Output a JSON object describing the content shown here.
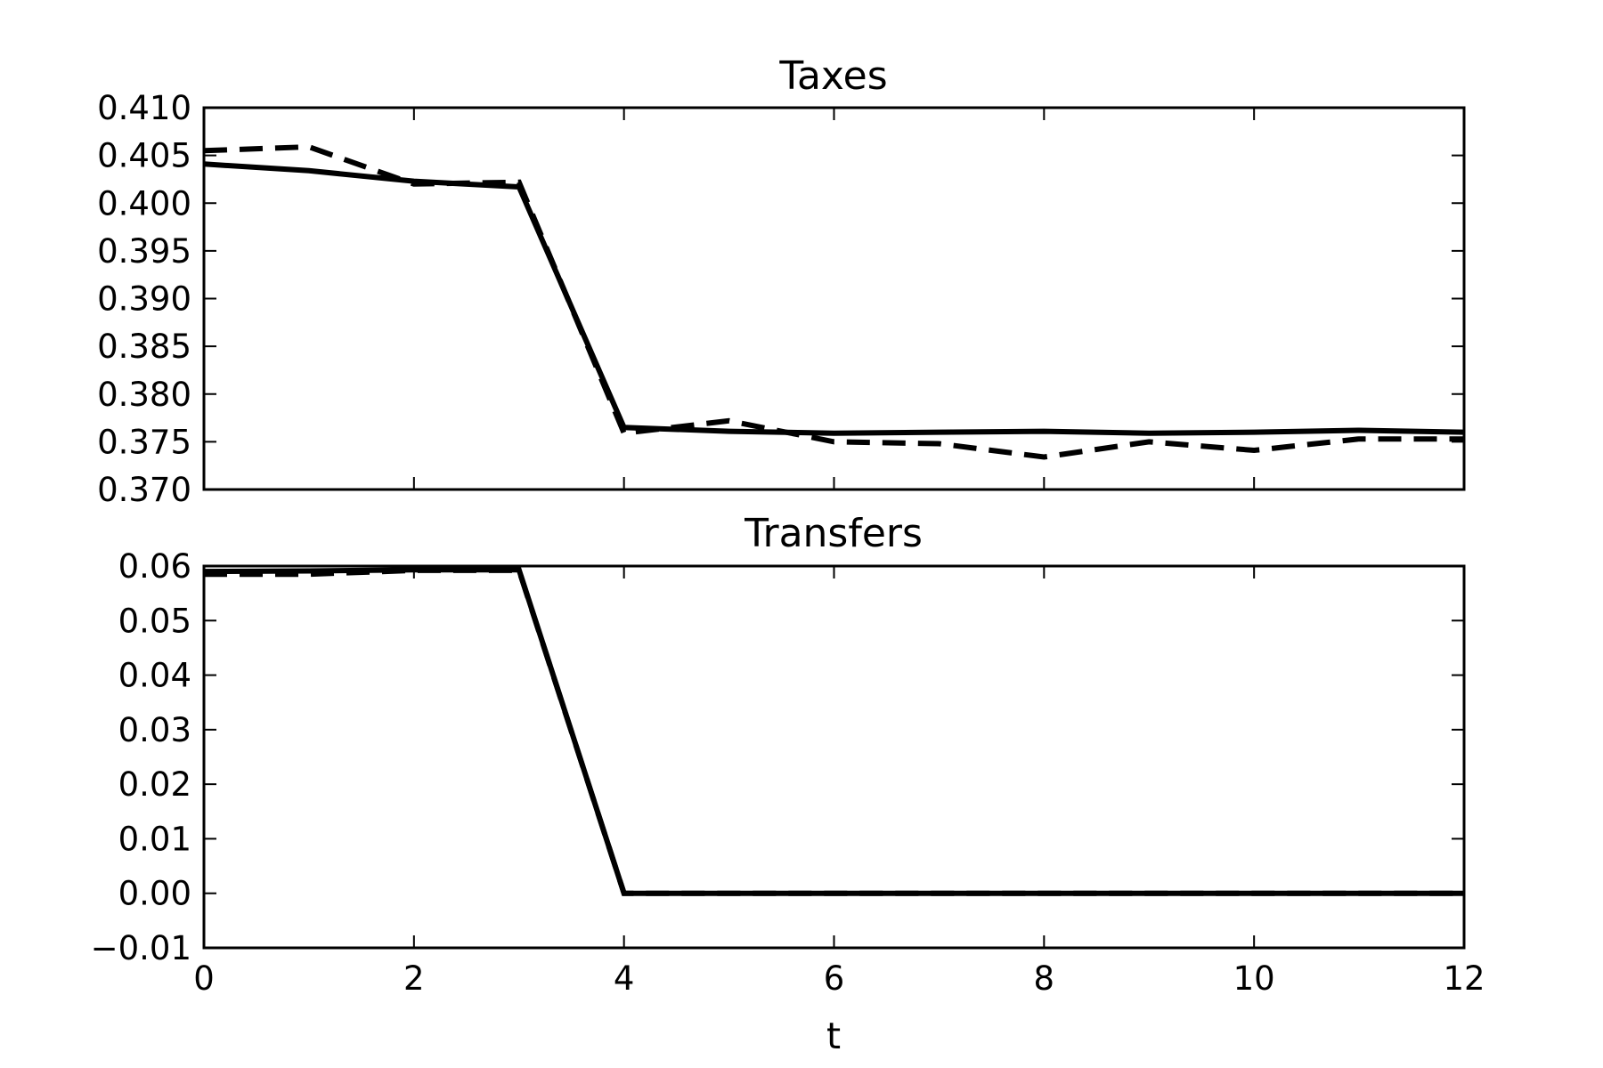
{
  "chart_data": [
    {
      "type": "line",
      "title": "Taxes",
      "xlabel": "",
      "ylabel": "",
      "xlim": [
        0,
        12
      ],
      "ylim": [
        0.37,
        0.41
      ],
      "x_ticks": [
        "0",
        "2",
        "4",
        "6",
        "8",
        "10",
        "12"
      ],
      "y_ticks": [
        "0.410",
        "0.405",
        "0.400",
        "0.395",
        "0.390",
        "0.385",
        "0.380",
        "0.375",
        "0.370"
      ],
      "grid": false,
      "x": [
        0,
        1,
        2,
        3,
        4,
        5,
        6,
        7,
        8,
        9,
        10,
        11,
        12
      ],
      "series": [
        {
          "style": "solid",
          "color": "#000000",
          "values": [
            0.4041,
            0.4034,
            0.4023,
            0.4017,
            0.3765,
            0.3761,
            0.3759,
            0.376,
            0.3761,
            0.3759,
            0.376,
            0.3762,
            0.376
          ]
        },
        {
          "style": "dashed",
          "color": "#000000",
          "values": [
            0.4055,
            0.4059,
            0.402,
            0.4022,
            0.3759,
            0.3772,
            0.375,
            0.3748,
            0.3734,
            0.375,
            0.3741,
            0.3753,
            0.3753
          ]
        }
      ]
    },
    {
      "type": "line",
      "title": "Transfers",
      "xlabel": "t",
      "ylabel": "",
      "xlim": [
        0,
        12
      ],
      "ylim": [
        -0.01,
        0.06
      ],
      "x_ticks": [
        "0",
        "2",
        "4",
        "6",
        "8",
        "10",
        "12"
      ],
      "y_ticks": [
        "0.06",
        "0.05",
        "0.04",
        "0.03",
        "0.02",
        "0.01",
        "0.00",
        "−0.01"
      ],
      "grid": false,
      "x": [
        0,
        1,
        2,
        3,
        4,
        5,
        6,
        7,
        8,
        9,
        10,
        11,
        12
      ],
      "series": [
        {
          "style": "solid",
          "color": "#000000",
          "values": [
            0.059,
            0.0591,
            0.0593,
            0.0593,
            0.0,
            0.0,
            0.0,
            0.0,
            0.0,
            0.0,
            0.0,
            0.0,
            0.0
          ]
        },
        {
          "style": "dashed",
          "color": "#000000",
          "values": [
            0.0585,
            0.0585,
            0.0592,
            0.0592,
            0.0,
            0.0,
            0.0,
            0.0,
            0.0,
            0.0,
            0.0,
            0.0,
            0.0
          ]
        }
      ]
    }
  ]
}
